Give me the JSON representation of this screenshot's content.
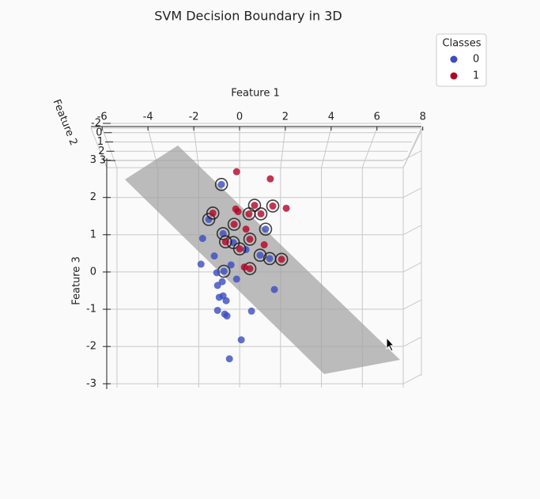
{
  "chart_data": {
    "type": "scatter",
    "title": "SVM Decision Boundary in 3D",
    "x_label": "Feature 1",
    "y_label": "Feature 3",
    "z_label": "Feature 2",
    "xlim": [
      -6.5,
      8.0
    ],
    "xticks": [
      -6,
      -4,
      -2,
      0,
      2,
      4,
      6,
      8
    ],
    "ylim": [
      -3.1,
      2.8
    ],
    "yticks": [
      -3,
      -2,
      -1,
      0,
      1,
      2,
      3
    ],
    "zticks": [
      -2,
      0,
      1,
      2,
      3
    ],
    "grid": true,
    "legend_title": "Classes",
    "legend_position": "upper right",
    "series": [
      {
        "name": "0",
        "color": "#3b4cc0",
        "x": [
          -0.89,
          -1.51,
          1.27,
          -0.81,
          -0.31,
          1.0,
          1.47,
          0.31,
          -1.81,
          -1.89,
          -1.24,
          -0.77,
          -0.42,
          -1.12,
          -0.15,
          -0.85,
          -1.08,
          -0.81,
          -1.0,
          -0.66,
          1.7,
          -1.08,
          -0.73,
          0.58,
          -0.62,
          0.08,
          -0.5
        ],
        "values": [
          2.35,
          1.41,
          1.15,
          1.03,
          0.79,
          0.45,
          0.36,
          0.6,
          0.9,
          0.21,
          0.43,
          0.02,
          0.19,
          -0.02,
          -0.19,
          -0.26,
          -0.36,
          -0.64,
          -0.68,
          -0.77,
          -0.47,
          -1.03,
          -1.13,
          -1.05,
          -1.18,
          -1.82,
          -2.33
        ],
        "support": [
          true,
          true,
          true,
          true,
          true,
          true,
          true,
          false,
          false,
          false,
          false,
          true,
          false,
          false,
          false,
          false,
          false,
          false,
          false,
          false,
          false,
          false,
          false,
          false,
          false,
          false,
          false
        ]
      },
      {
        "name": "1",
        "color": "#b40426",
        "x": [
          -0.15,
          1.5,
          2.28,
          1.62,
          0.73,
          1.04,
          0.46,
          -0.19,
          -0.08,
          -1.31,
          0.31,
          -0.27,
          0.5,
          -0.69,
          0.0,
          1.2,
          2.05,
          0.5,
          0.23
        ],
        "values": [
          2.69,
          2.5,
          1.71,
          1.77,
          1.79,
          1.56,
          1.56,
          1.69,
          1.62,
          1.58,
          1.15,
          1.28,
          0.88,
          0.81,
          0.62,
          0.73,
          0.34,
          0.09,
          0.13
        ],
        "support": [
          false,
          false,
          false,
          true,
          true,
          true,
          true,
          false,
          false,
          true,
          false,
          true,
          true,
          true,
          true,
          false,
          true,
          true,
          false
        ]
      }
    ]
  }
}
